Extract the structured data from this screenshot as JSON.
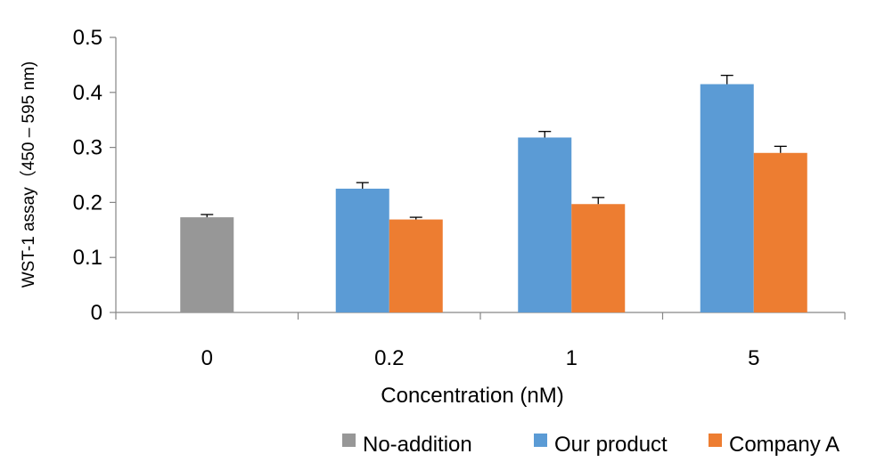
{
  "chart_data": {
    "type": "bar",
    "title": "",
    "xlabel": "Concentration (nM)",
    "ylabel": "WST-1 assay（450 – 595 nm)",
    "ylim": [
      0,
      0.5
    ],
    "yticks": [
      "0",
      "0.1",
      "0.2",
      "0.3",
      "0.4",
      "0.5"
    ],
    "categories": [
      "0",
      "0.2",
      "1",
      "5"
    ],
    "grid": false,
    "legend_position": "bottom-right",
    "series": [
      {
        "name": "No-addition",
        "color": "#979797",
        "values": [
          0.173,
          null,
          null,
          null
        ],
        "errors": [
          0.005,
          null,
          null,
          null
        ]
      },
      {
        "name": "Our product",
        "color": "#5b9bd5",
        "values": [
          null,
          0.225,
          0.318,
          0.415
        ],
        "errors": [
          null,
          0.011,
          0.011,
          0.016
        ]
      },
      {
        "name": "Company A",
        "color": "#ed7d31",
        "values": [
          null,
          0.169,
          0.197,
          0.29
        ],
        "errors": [
          null,
          0.004,
          0.012,
          0.012
        ]
      }
    ]
  }
}
